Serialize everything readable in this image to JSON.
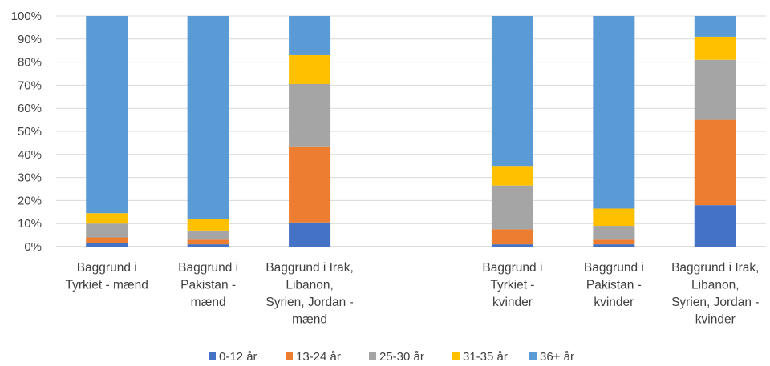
{
  "chart_data": {
    "type": "bar",
    "stacked": true,
    "normalized": true,
    "title": "",
    "xlabel": "",
    "ylabel": "",
    "ylim": [
      0,
      100
    ],
    "yticks": [
      "0%",
      "10%",
      "20%",
      "30%",
      "40%",
      "50%",
      "60%",
      "70%",
      "80%",
      "90%",
      "100%"
    ],
    "grid": true,
    "legend_position": "bottom",
    "categories": [
      [
        "Baggrund i",
        "Tyrkiet - mænd"
      ],
      [
        "Baggrund i",
        "Pakistan -",
        "mænd"
      ],
      [
        "Baggrund i Irak,",
        "Libanon,",
        "Syrien, Jordan -",
        "mænd"
      ],
      [
        "",
        ""
      ],
      [
        "Baggrund i",
        "Tyrkiet -",
        "kvinder"
      ],
      [
        "Baggrund i",
        "Pakistan -",
        "kvinder"
      ],
      [
        "Baggrund i Irak,",
        "Libanon,",
        "Syrien, Jordan -",
        "kvinder"
      ]
    ],
    "series": [
      {
        "name": "0-12 år",
        "color": "#4472C4",
        "values": [
          1.5,
          1.0,
          10.5,
          null,
          1.0,
          1.0,
          18.0
        ]
      },
      {
        "name": "13-24 år",
        "color": "#ED7D31",
        "values": [
          2.5,
          2.0,
          33.0,
          null,
          6.5,
          2.0,
          37.0
        ]
      },
      {
        "name": "25-30 år",
        "color": "#A5A5A5",
        "values": [
          6.0,
          4.0,
          27.0,
          null,
          19.0,
          6.0,
          26.0
        ]
      },
      {
        "name": "31-35 år",
        "color": "#FFC000",
        "values": [
          4.5,
          5.0,
          12.5,
          null,
          8.5,
          7.5,
          10.0
        ]
      },
      {
        "name": "36+ år",
        "color": "#5B9BD5",
        "values": [
          85.5,
          88.0,
          17.0,
          null,
          65.0,
          83.5,
          9.0
        ]
      }
    ]
  }
}
